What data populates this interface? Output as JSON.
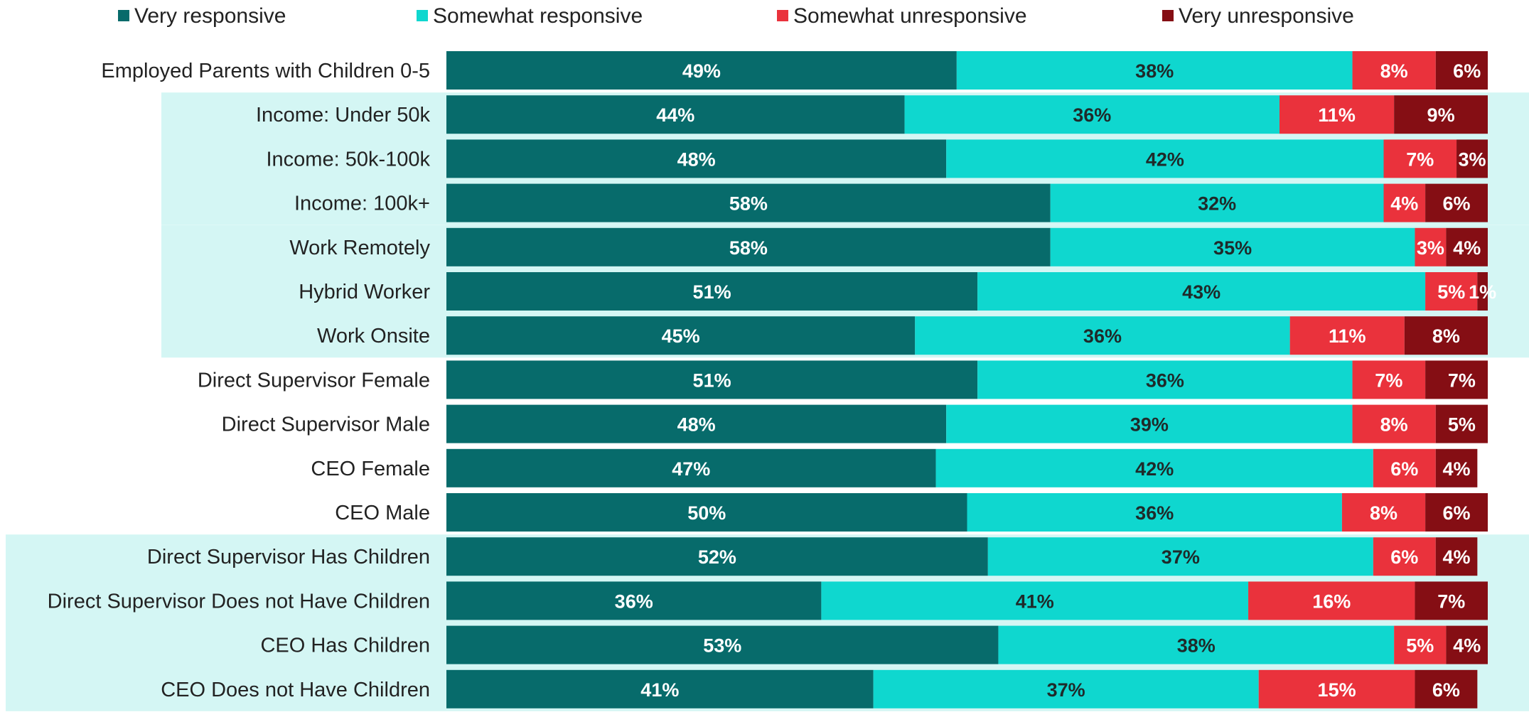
{
  "chart_data": {
    "type": "bar",
    "orientation": "horizontal",
    "stacked": true,
    "title": "",
    "xlabel": "",
    "ylabel": "",
    "xlim": [
      0,
      100
    ],
    "legend_position": "top",
    "categories": [
      "Employed Parents with Children 0-5",
      "Income: Under 50k",
      "Income: 50k-100k",
      "Income: 100k+",
      "Work Remotely",
      "Hybrid Worker",
      "Work Onsite",
      "Direct Supervisor Female",
      "Direct Supervisor Male",
      "CEO Female",
      "CEO Male",
      "Direct Supervisor Has Children",
      "Direct Supervisor Does not Have Children",
      "CEO Has Children",
      "CEO Does not Have Children"
    ],
    "series": [
      {
        "name": "Very responsive",
        "color": "#076b6b",
        "label_color": "#ffffff",
        "values": [
          49,
          44,
          48,
          58,
          58,
          51,
          45,
          51,
          48,
          47,
          50,
          52,
          36,
          53,
          41
        ]
      },
      {
        "name": "Somewhat responsive",
        "color": "#0fd7cf",
        "label_color": "#1f2a2a",
        "values": [
          38,
          36,
          42,
          32,
          35,
          43,
          36,
          36,
          39,
          42,
          36,
          37,
          41,
          38,
          37
        ]
      },
      {
        "name": "Somewhat unresponsive",
        "color": "#ea323c",
        "label_color": "#ffffff",
        "values": [
          8,
          11,
          7,
          4,
          3,
          5,
          11,
          7,
          8,
          6,
          8,
          6,
          16,
          5,
          15
        ]
      },
      {
        "name": "Very unresponsive",
        "color": "#850e14",
        "label_color": "#ffffff",
        "values": [
          6,
          9,
          3,
          6,
          4,
          1,
          8,
          7,
          5,
          4,
          6,
          4,
          7,
          4,
          6
        ]
      }
    ],
    "highlight_groups": [
      {
        "rows": [
          1,
          3
        ],
        "extent": "narrow",
        "color": "#d4f6f4"
      },
      {
        "rows": [
          4,
          6
        ],
        "extent": "narrow",
        "color": "#d4f6f4"
      },
      {
        "rows": [
          11,
          14
        ],
        "extent": "wide",
        "color": "#d4f6f4"
      }
    ]
  }
}
